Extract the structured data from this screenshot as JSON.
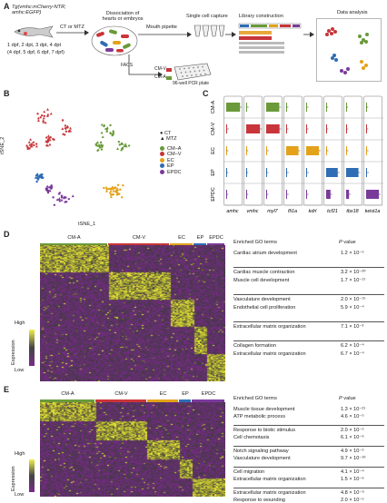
{
  "panel_labels": {
    "a": "A",
    "b": "B",
    "c": "C",
    "d": "D",
    "e": "E"
  },
  "panel_a": {
    "transgene": "Tg(vmhc:mCherry-NTR; amhc:EGFP)",
    "treatment": "CT or MTZ",
    "timepoints": [
      "1 dpf, 2 dpt, 3 dpt, 4 dpt",
      "(4 dpf, 5 dpf, 6 dpf, 7 dpf)"
    ],
    "step_dissociation": [
      "Dissociation of",
      "hearts or embryos"
    ],
    "step_mouth_pipette": "Mouth pipette",
    "step_fluor": "FACS",
    "cm_a": "CM-A",
    "cm_v": "CM-V",
    "plate": "96-well PCR plate",
    "step_single_cell": "Single cell capture",
    "step_library": "Library construction",
    "step_analysis": "Data analysis"
  },
  "panel_b": {
    "xlabel": "tSNE_1",
    "ylabel": "tSNE_2",
    "legend_shape": [
      {
        "label": "CT",
        "symbol": "●"
      },
      {
        "label": "MTZ",
        "symbol": "▲"
      }
    ],
    "legend_clusters": [
      {
        "label": "CM–A",
        "color": "#6a9a3a"
      },
      {
        "label": "CM–V",
        "color": "#c8353a"
      },
      {
        "label": "EC",
        "color": "#e3a21a"
      },
      {
        "label": "EP",
        "color": "#2f6db5"
      },
      {
        "label": "EPDC",
        "color": "#7a3a9a"
      }
    ]
  },
  "panel_c": {
    "rows": [
      "CM-A",
      "CM-V",
      "EC",
      "EP",
      "EPDC"
    ],
    "genes": [
      "amhc",
      "vmhc",
      "myl7",
      "fli1a",
      "kdrl",
      "tcf21",
      "tbx18",
      "twist1a"
    ],
    "colors": [
      "#6a9a3a",
      "#c8353a",
      "#e3a21a",
      "#2f6db5",
      "#7a3a9a"
    ],
    "values": [
      [
        0.95,
        0.05,
        0.9,
        0.03,
        0.04,
        0.02,
        0.02,
        0.02
      ],
      [
        0.06,
        0.95,
        0.92,
        0.03,
        0.04,
        0.02,
        0.02,
        0.02
      ],
      [
        0.02,
        0.02,
        0.05,
        0.85,
        0.88,
        0.03,
        0.03,
        0.04
      ],
      [
        0.02,
        0.02,
        0.03,
        0.05,
        0.05,
        0.8,
        0.85,
        0.06
      ],
      [
        0.02,
        0.02,
        0.03,
        0.05,
        0.04,
        0.3,
        0.2,
        0.88
      ]
    ]
  },
  "panel_d": {
    "clusters": [
      {
        "label": "CM-A",
        "color": "#6a9a3a",
        "frac": 0.37
      },
      {
        "label": "CM-V",
        "color": "#c8353a",
        "frac": 0.33
      },
      {
        "label": "EC",
        "color": "#e3a21a",
        "frac": 0.13
      },
      {
        "label": "EP",
        "color": "#2f6db5",
        "frac": 0.07
      },
      {
        "label": "EPDC",
        "color": "#7a3a9a",
        "frac": 0.1
      }
    ],
    "header_terms": "Enriched GO terms",
    "header_p": "P value",
    "groups": [
      [
        {
          "term": "Cardiac atrium development",
          "p": "1.2 × 10⁻⁵"
        }
      ],
      [
        {
          "term": "Cardiac muscle contraction",
          "p": "3.2 × 10⁻²⁰"
        },
        {
          "term": "Muscle cell development",
          "p": "1.7 × 10⁻¹¹"
        }
      ],
      [
        {
          "term": "Vasculature development",
          "p": "2.0 × 10⁻¹⁵"
        },
        {
          "term": "Endothelial cell proliferation",
          "p": "5.9 × 10⁻⁴"
        }
      ],
      [
        {
          "term": "Extracellular matrix organization",
          "p": "7.1 × 10⁻³"
        }
      ],
      [
        {
          "term": "Collagen formation",
          "p": "6.2 × 10⁻⁴"
        },
        {
          "term": "Extracellular matrix organization",
          "p": "6.7 × 10⁻⁴"
        }
      ]
    ],
    "legend_title": "Expression",
    "legend_high": "High",
    "legend_low": "Low"
  },
  "panel_e": {
    "clusters": [
      {
        "label": "CM-A",
        "color": "#6a9a3a",
        "frac": 0.3
      },
      {
        "label": "CM-V",
        "color": "#c8353a",
        "frac": 0.28
      },
      {
        "label": "EC",
        "color": "#e3a21a",
        "frac": 0.17
      },
      {
        "label": "EP",
        "color": "#2f6db5",
        "frac": 0.07
      },
      {
        "label": "EPDC",
        "color": "#7a3a9a",
        "frac": 0.18
      }
    ],
    "header_terms": "Enriched GO terms",
    "header_p": "P value",
    "groups": [
      [
        {
          "term": "Muscle tissue development",
          "p": "1.3 × 10⁻²¹"
        },
        {
          "term": "ATP metabolic process",
          "p": "4.6 × 10⁻⁵"
        }
      ],
      [
        {
          "term": "Response to biotic stimulus",
          "p": "2.0 × 10⁻⁵"
        },
        {
          "term": "Cell chemotaxis",
          "p": "6.1 × 10⁻⁶"
        }
      ],
      [
        {
          "term": "Notch signaling pathway",
          "p": "4.9 × 10⁻⁵"
        },
        {
          "term": "Vasculature development",
          "p": "9.7 × 10⁻¹⁰"
        }
      ],
      [
        {
          "term": "Cell migration",
          "p": "4.1 × 10⁻⁴"
        },
        {
          "term": "Extracellular matrix organization",
          "p": "1.5 × 10⁻⁶"
        }
      ],
      [
        {
          "term": "Extracellular matrix organization",
          "p": "4.8 × 10⁻⁹"
        },
        {
          "term": "Response to wounding",
          "p": "2.0 × 10⁻⁵"
        }
      ]
    ],
    "legend_title": "Expression",
    "legend_high": "High",
    "legend_low": "Low"
  }
}
